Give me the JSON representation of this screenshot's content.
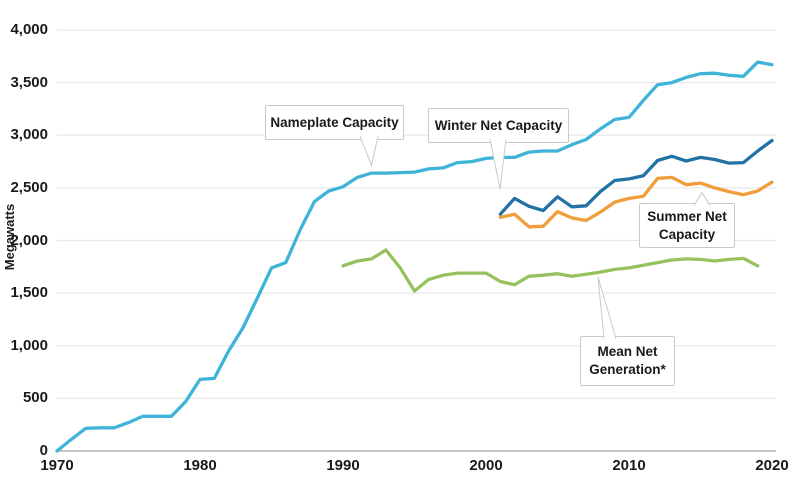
{
  "callouts": {
    "nameplate": {
      "line1": "Nameplate Capacity",
      "line2": ""
    },
    "winter": {
      "line1": "Winter Net Capacity",
      "line2": ""
    },
    "summer": {
      "line1": "Summer Net",
      "line2": "Capacity"
    },
    "mean": {
      "line1": "Mean Net",
      "line2": "Generation*"
    }
  },
  "chart_data": {
    "type": "line",
    "title": "",
    "xlabel": "",
    "ylabel": "Megawatts",
    "xlim": [
      1970,
      2020
    ],
    "ylim": [
      0,
      4000
    ],
    "grid": "horizontal",
    "legend": "inline-callouts",
    "x_ticks": [
      1970,
      1980,
      1990,
      2000,
      2010,
      2020
    ],
    "x_tick_labels": [
      "1970",
      "1980",
      "1990",
      "2000",
      "2010",
      "2020"
    ],
    "y_ticks": [
      0,
      500,
      1000,
      1500,
      2000,
      2500,
      3000,
      3500,
      4000
    ],
    "y_tick_labels": [
      "0",
      "500",
      "1,000",
      "1,500",
      "2,000",
      "2,500",
      "3,000",
      "3,500",
      "4,000"
    ],
    "colors": {
      "nameplate": "#3fb4d8",
      "winter": "#2272a6",
      "summer": "#f09e3c",
      "mean": "#95c25c",
      "grid": "#e9e9e9",
      "axis": "#b3b3b3",
      "text": "#1a1a1a",
      "callout_border": "#c9c9c9"
    },
    "series": [
      {
        "name": "Nameplate Capacity",
        "key": "nameplate",
        "color": "#3fb4d8",
        "start_year": 1970,
        "values": [
          0,
          110,
          215,
          220,
          220,
          270,
          330,
          330,
          330,
          470,
          680,
          690,
          950,
          1170,
          1450,
          1740,
          1790,
          2100,
          2370,
          2470,
          2510,
          2600,
          2640,
          2640,
          2645,
          2650,
          2680,
          2690,
          2740,
          2750,
          2780,
          2790,
          2790,
          2840,
          2850,
          2850,
          2910,
          2960,
          3060,
          3150,
          3170,
          3330,
          3480,
          3500,
          3550,
          3585,
          3590,
          3570,
          3560,
          3695,
          3670
        ]
      },
      {
        "name": "Winter Net Capacity",
        "key": "winter",
        "color": "#2272a6",
        "start_year": 2001,
        "values": [
          2250,
          2400,
          2325,
          2285,
          2415,
          2320,
          2330,
          2465,
          2570,
          2585,
          2615,
          2760,
          2800,
          2755,
          2790,
          2770,
          2735,
          2740,
          2850,
          2950
        ]
      },
      {
        "name": "Summer Net Capacity",
        "key": "summer",
        "color": "#f09e3c",
        "start_year": 2001,
        "values": [
          2220,
          2250,
          2130,
          2135,
          2275,
          2215,
          2190,
          2270,
          2365,
          2400,
          2420,
          2590,
          2600,
          2530,
          2545,
          2500,
          2465,
          2435,
          2470,
          2555
        ]
      },
      {
        "name": "Mean Net Generation*",
        "key": "mean",
        "color": "#95c25c",
        "start_year": 1990,
        "values": [
          1760,
          1805,
          1825,
          1910,
          1740,
          1520,
          1630,
          1670,
          1690,
          1690,
          1690,
          1610,
          1580,
          1660,
          1670,
          1685,
          1660,
          1680,
          1700,
          1725,
          1740,
          1765,
          1790,
          1815,
          1825,
          1820,
          1805,
          1820,
          1830,
          1760
        ]
      }
    ]
  }
}
